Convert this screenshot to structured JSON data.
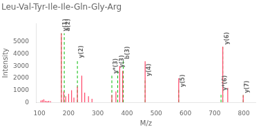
{
  "chart_data": {
    "type": "stem",
    "title": "Leu-Val-Tyr-Ile-Ile-Gln-Gly-Arg",
    "x_label": "M/z",
    "y_label": "Intensity",
    "xlim": [
      90,
      840
    ],
    "ylim": [
      0,
      6500
    ],
    "xticks": [
      100,
      200,
      300,
      400,
      500,
      600,
      700,
      800
    ],
    "yticks": [
      0,
      1000,
      2000,
      3000,
      4000,
      5000
    ],
    "grid": false,
    "series": [
      {
        "color": "#ff4466",
        "x": [
          105,
          110,
          115,
          120,
          125,
          128,
          132,
          138,
          175,
          183,
          190,
          200,
          210,
          218,
          230,
          245,
          255,
          268,
          280,
          348,
          362,
          375,
          385,
          462,
          577,
          728,
          745,
          798
        ],
        "values": [
          150,
          200,
          250,
          130,
          100,
          80,
          120,
          90,
          5700,
          900,
          500,
          700,
          1000,
          400,
          1300,
          2200,
          800,
          500,
          300,
          600,
          900,
          3000,
          2600,
          3400,
          2000,
          4600,
          1200,
          600
        ]
      },
      {
        "color": "#00bb00",
        "line_style": "dashed",
        "x": [
          175,
          185,
          230,
          348,
          368,
          387,
          462,
          577,
          722,
          728,
          798
        ],
        "values": [
          5700,
          5700,
          3500,
          2200,
          2700,
          3400,
          2000,
          1100,
          800,
          4600,
          600
        ],
        "annotations": [
          "y(1)",
          "a(2)",
          "y(2)",
          "y*(3)",
          "y(3)",
          "b(3)",
          "y(4)",
          "y(5)",
          "y*(6)",
          "y(6)",
          "y(7)"
        ]
      }
    ]
  }
}
